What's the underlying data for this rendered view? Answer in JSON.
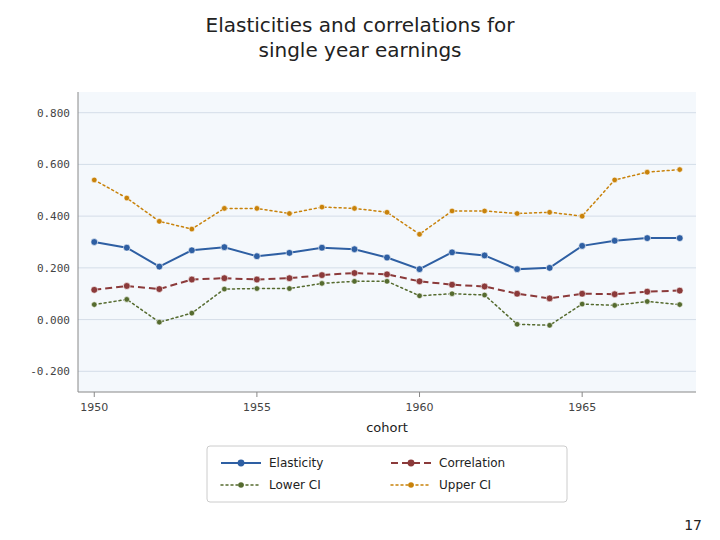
{
  "chart_data": {
    "type": "line",
    "title": "Elasticities and correlations for\nsingle year earnings",
    "x_label": "cohort",
    "x": [
      1950,
      1951,
      1952,
      1953,
      1954,
      1955,
      1956,
      1957,
      1958,
      1959,
      1960,
      1961,
      1962,
      1963,
      1964,
      1965,
      1966,
      1967,
      1968
    ],
    "series": [
      {
        "name": "Elasticity",
        "color": "#2e5fa3",
        "line_style": "solid",
        "marker": "circle",
        "values": [
          0.3,
          0.278,
          0.205,
          0.268,
          0.28,
          0.245,
          0.258,
          0.278,
          0.272,
          0.24,
          0.195,
          0.26,
          0.248,
          0.195,
          0.2,
          0.285,
          0.305,
          0.315,
          0.315
        ]
      },
      {
        "name": "Correlation",
        "color": "#8b3a3a",
        "line_style": "dashed",
        "marker": "circle",
        "values": [
          0.115,
          0.13,
          0.118,
          0.155,
          0.16,
          0.155,
          0.16,
          0.172,
          0.18,
          0.175,
          0.148,
          0.135,
          0.128,
          0.1,
          0.082,
          0.1,
          0.098,
          0.108,
          0.112
        ]
      },
      {
        "name": "Lower CI",
        "color": "#556b2f",
        "line_style": "dotted",
        "marker": "circle",
        "values": [
          0.058,
          0.078,
          -0.01,
          0.025,
          0.118,
          0.12,
          0.12,
          0.14,
          0.148,
          0.148,
          0.092,
          0.1,
          0.095,
          -0.018,
          -0.022,
          0.06,
          0.055,
          0.07,
          0.058
        ]
      },
      {
        "name": "Upper CI",
        "color": "#c8820a",
        "line_style": "dotted",
        "marker": "circle",
        "values": [
          0.54,
          0.47,
          0.38,
          0.35,
          0.43,
          0.43,
          0.41,
          0.435,
          0.43,
          0.415,
          0.33,
          0.42,
          0.42,
          0.41,
          0.415,
          0.4,
          0.54,
          0.57,
          0.58
        ]
      }
    ],
    "xlim": [
      1949.5,
      1968.5
    ],
    "xticks": [
      1950,
      1955,
      1960,
      1965
    ],
    "ylim": [
      -0.28,
      0.88
    ],
    "yticks": [
      {
        "value": -0.2,
        "label": "-0.200"
      },
      {
        "value": 0,
        "label": "0.000"
      },
      {
        "value": 0.2,
        "label": "0.200"
      },
      {
        "value": 0.4,
        "label": "0.400"
      },
      {
        "value": 0.6,
        "label": "0.600"
      },
      {
        "value": 0.8,
        "label": "0.800"
      }
    ],
    "grid": true,
    "legend": "bottom",
    "annotations": [
      "17"
    ]
  }
}
